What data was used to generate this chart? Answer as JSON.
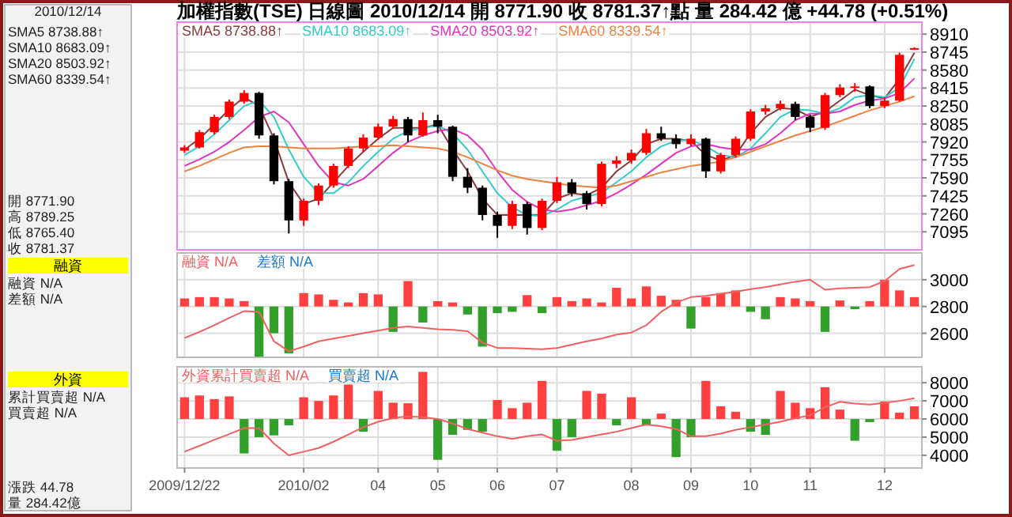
{
  "chart_data": [
    {
      "type": "candlestick",
      "title": "加權指數(TSE)  日線圖  2010/12/14  開 8771.90  收 8781.37↑點  量 284.42 億  +44.78 (+0.51%)",
      "categories": [
        "2009/12/22",
        null,
        null,
        null,
        null,
        null,
        null,
        null,
        "2010/02",
        null,
        null,
        null,
        null,
        "04",
        null,
        null,
        null,
        "05",
        null,
        null,
        null,
        "06",
        null,
        null,
        null,
        "07",
        null,
        null,
        null,
        null,
        "08",
        null,
        null,
        null,
        "09",
        null,
        null,
        null,
        "10",
        null,
        null,
        null,
        "11",
        null,
        null,
        null,
        null,
        "12",
        null,
        null
      ],
      "ohlc": [
        [
          7840,
          7890,
          7820,
          7870
        ],
        [
          7870,
          8030,
          7860,
          8010
        ],
        [
          8010,
          8170,
          7990,
          8150
        ],
        [
          8150,
          8310,
          8130,
          8290
        ],
        [
          8290,
          8395,
          8270,
          8370
        ],
        [
          8370,
          8380,
          7950,
          7980
        ],
        [
          7980,
          8000,
          7530,
          7560
        ],
        [
          7560,
          7580,
          7080,
          7200
        ],
        [
          7200,
          7400,
          7150,
          7380
        ],
        [
          7380,
          7540,
          7340,
          7520
        ],
        [
          7520,
          7720,
          7500,
          7700
        ],
        [
          7700,
          7880,
          7680,
          7860
        ],
        [
          7860,
          7990,
          7830,
          7960
        ],
        [
          7960,
          8090,
          7940,
          8060
        ],
        [
          8060,
          8160,
          8040,
          8130
        ],
        [
          8130,
          8150,
          7920,
          7980
        ],
        [
          7980,
          8190,
          7970,
          8120
        ],
        [
          8120,
          8170,
          8000,
          8060
        ],
        [
          8060,
          8070,
          7560,
          7600
        ],
        [
          7600,
          7680,
          7450,
          7500
        ],
        [
          7500,
          7520,
          7200,
          7250
        ],
        [
          7250,
          7280,
          7040,
          7150
        ],
        [
          7150,
          7380,
          7120,
          7350
        ],
        [
          7350,
          7370,
          7070,
          7130
        ],
        [
          7130,
          7400,
          7110,
          7380
        ],
        [
          7380,
          7600,
          7360,
          7550
        ],
        [
          7550,
          7580,
          7420,
          7450
        ],
        [
          7450,
          7470,
          7300,
          7350
        ],
        [
          7350,
          7740,
          7330,
          7720
        ],
        [
          7720,
          7790,
          7680,
          7750
        ],
        [
          7750,
          7850,
          7720,
          7820
        ],
        [
          7820,
          8040,
          7800,
          8000
        ],
        [
          8000,
          8060,
          7930,
          7950
        ],
        [
          7950,
          7990,
          7860,
          7900
        ],
        [
          7900,
          7990,
          7880,
          7950
        ],
        [
          7950,
          7960,
          7590,
          7650
        ],
        [
          7650,
          7820,
          7630,
          7800
        ],
        [
          7800,
          7970,
          7780,
          7950
        ],
        [
          7950,
          8220,
          7930,
          8200
        ],
        [
          8200,
          8260,
          8170,
          8230
        ],
        [
          8230,
          8300,
          8210,
          8270
        ],
        [
          8270,
          8290,
          8120,
          8150
        ],
        [
          8150,
          8170,
          8010,
          8050
        ],
        [
          8050,
          8370,
          8030,
          8350
        ],
        [
          8350,
          8450,
          8330,
          8420
        ],
        [
          8420,
          8460,
          8380,
          8430
        ],
        [
          8430,
          8440,
          8230,
          8250
        ],
        [
          8250,
          8330,
          8230,
          8300
        ],
        [
          8300,
          8740,
          8290,
          8720
        ],
        [
          8771.9,
          8789.25,
          8765.4,
          8781.37
        ]
      ],
      "colors": [
        "#ff0000",
        "#ff0000",
        "#ff0000",
        "#ff0000",
        "#ff0000",
        "#000000",
        "#000000",
        "#000000",
        "#ff0000",
        "#ff0000",
        "#ff0000",
        "#ff0000",
        "#ff0000",
        "#ff0000",
        "#ff0000",
        "#000000",
        "#ff0000",
        "#000000",
        "#000000",
        "#000000",
        "#000000",
        "#000000",
        "#ff0000",
        "#000000",
        "#ff0000",
        "#ff0000",
        "#000000",
        "#000000",
        "#ff0000",
        "#ff0000",
        "#ff0000",
        "#ff0000",
        "#000000",
        "#000000",
        "#ff0000",
        "#000000",
        "#ff0000",
        "#ff0000",
        "#ff0000",
        "#ff0000",
        "#ff0000",
        "#000000",
        "#000000",
        "#ff0000",
        "#ff0000",
        "#ff0000",
        "#000000",
        "#ff0000",
        "#ff0000",
        "#ff0000"
      ],
      "series": [
        {
          "name": "SMA5 8738.88↑",
          "type": "line",
          "color": "#8b3a3a",
          "values": [
            7850,
            7950,
            8080,
            8220,
            8330,
            8250,
            7950,
            7550,
            7350,
            7400,
            7550,
            7700,
            7830,
            7950,
            8050,
            8050,
            8050,
            8080,
            7850,
            7650,
            7400,
            7250,
            7250,
            7250,
            7250,
            7400,
            7450,
            7430,
            7500,
            7650,
            7750,
            7900,
            7950,
            7950,
            7930,
            7800,
            7750,
            7800,
            8000,
            8150,
            8230,
            8220,
            8150,
            8200,
            8300,
            8400,
            8350,
            8320,
            8500,
            8739
          ]
        },
        {
          "name": "SMA10 8683.09↑",
          "type": "line",
          "color": "#33cccc",
          "values": [
            7800,
            7880,
            7990,
            8120,
            8250,
            8300,
            8150,
            7850,
            7600,
            7450,
            7450,
            7550,
            7700,
            7830,
            7950,
            8020,
            8050,
            8070,
            8000,
            7850,
            7650,
            7450,
            7320,
            7250,
            7240,
            7300,
            7380,
            7420,
            7450,
            7550,
            7650,
            7780,
            7880,
            7930,
            7940,
            7880,
            7800,
            7780,
            7860,
            8000,
            8150,
            8220,
            8210,
            8180,
            8230,
            8330,
            8350,
            8330,
            8420,
            8683
          ]
        },
        {
          "name": "SMA20 8503.92↑",
          "type": "line",
          "color": "#e033c0",
          "values": [
            7700,
            7760,
            7830,
            7920,
            8030,
            8150,
            8200,
            8100,
            7900,
            7700,
            7550,
            7520,
            7580,
            7700,
            7820,
            7920,
            7980,
            8020,
            8040,
            7980,
            7850,
            7650,
            7480,
            7370,
            7300,
            7280,
            7300,
            7340,
            7380,
            7450,
            7530,
            7620,
            7720,
            7820,
            7880,
            7900,
            7870,
            7850,
            7850,
            7900,
            8000,
            8120,
            8180,
            8180,
            8200,
            8260,
            8300,
            8320,
            8370,
            8504
          ]
        },
        {
          "name": "SMA60 8339.54↑",
          "type": "line",
          "color": "#f08040",
          "values": [
            7650,
            7700,
            7760,
            7820,
            7870,
            7880,
            7880,
            7870,
            7860,
            7860,
            7860,
            7870,
            7880,
            7880,
            7890,
            7880,
            7870,
            7860,
            7830,
            7780,
            7720,
            7660,
            7610,
            7580,
            7560,
            7540,
            7520,
            7510,
            7500,
            7520,
            7560,
            7600,
            7640,
            7670,
            7700,
            7720,
            7740,
            7780,
            7830,
            7880,
            7930,
            7980,
            8020,
            8060,
            8110,
            8160,
            8210,
            8250,
            8290,
            8340
          ]
        }
      ],
      "ylim": [
        6930,
        9020
      ],
      "yticks": [
        7095,
        7260,
        7425,
        7590,
        7755,
        7920,
        8085,
        8250,
        8415,
        8580,
        8745,
        8910
      ],
      "grid": true,
      "legend": "top left",
      "tick_labels": "y"
    },
    {
      "type": "bar",
      "categories": [
        "2009/12/22",
        null,
        null,
        null,
        null,
        null,
        null,
        null,
        "2010/02",
        null,
        null,
        null,
        null,
        "04",
        null,
        null,
        null,
        "05",
        null,
        null,
        null,
        "06",
        null,
        null,
        null,
        "07",
        null,
        null,
        null,
        null,
        "08",
        null,
        null,
        null,
        "09",
        null,
        null,
        null,
        "10",
        null,
        null,
        null,
        "11",
        null,
        null,
        null,
        null,
        "12",
        null,
        null
      ],
      "series": [
        {
          "name": "融資 N/A",
          "type": "line",
          "color": "#f06060",
          "values": [
            2565,
            2610,
            2660,
            2715,
            2765,
            2760,
            2540,
            2465,
            2500,
            2540,
            2560,
            2580,
            2600,
            2620,
            2640,
            2650,
            2640,
            2630,
            2625,
            2615,
            2530,
            2490,
            2490,
            2485,
            2480,
            2490,
            2515,
            2540,
            2560,
            2590,
            2605,
            2660,
            2760,
            2830,
            2870,
            2880,
            2895,
            2910,
            2930,
            2945,
            2965,
            2985,
            3000,
            2925,
            2935,
            2940,
            2945,
            2990,
            3080,
            3110
          ]
        },
        {
          "name": "差額 N/A",
          "type": "bar",
          "color": "#1e78c8",
          "colors": [
            "#ff4040",
            "#ff4040",
            "#ff4040",
            "#ff4040",
            "#ff4040",
            "#33a02c",
            "#33a02c",
            "#33a02c",
            "#ff4040",
            "#ff4040",
            "#ff4040",
            "#ff4040",
            "#ff4040",
            "#ff4040",
            "#33a02c",
            "#ff4040",
            "#33a02c",
            "#ff4040",
            "#ff4040",
            "#33a02c",
            "#33a02c",
            "#33a02c",
            "#33a02c",
            "#ff4040",
            "#33a02c",
            "#ff4040",
            "#ff4040",
            "#ff4040",
            "#ff4040",
            "#ff4040",
            "#ff4040",
            "#ff4040",
            "#ff4040",
            "#ff4040",
            "#33a02c",
            "#ff4040",
            "#ff4040",
            "#ff4040",
            "#33a02c",
            "#33a02c",
            "#ff4040",
            "#ff4040",
            "#ff4040",
            "#33a02c",
            "#ff4040",
            "#33a02c",
            "#ff4040",
            "#ff4040",
            "#ff4040",
            "#ff4040"
          ],
          "base": [
            2800,
            2800,
            2800,
            2800,
            2800,
            2800,
            2800,
            2800,
            2800,
            2800,
            2800,
            2800,
            2800,
            2800,
            2800,
            2800,
            2800,
            2800,
            2800,
            2800,
            2800,
            2800,
            2800,
            2800,
            2800,
            2800,
            2800,
            2800,
            2800,
            2800,
            2800,
            2800,
            2800,
            2800,
            2800,
            2800,
            2800,
            2800,
            2800,
            2800,
            2800,
            2800,
            2800,
            2800,
            2800,
            2800,
            2800,
            2800,
            2800,
            2800
          ],
          "values": [
            60,
            70,
            70,
            60,
            40,
            -375,
            -200,
            -350,
            100,
            90,
            50,
            30,
            100,
            90,
            -190,
            190,
            -120,
            40,
            30,
            -60,
            -300,
            -50,
            -40,
            85,
            -50,
            70,
            40,
            60,
            30,
            140,
            60,
            150,
            80,
            50,
            -165,
            70,
            100,
            120,
            -40,
            -95,
            70,
            60,
            40,
            -190,
            45,
            -20,
            40,
            200,
            120,
            70
          ]
        }
      ],
      "ylim": [
        2420,
        3200
      ],
      "yticks": [
        2600,
        2800,
        3000
      ],
      "grid": true,
      "legend": "top left",
      "tick_labels": "y"
    },
    {
      "type": "bar",
      "categories": [
        "2009/12/22",
        null,
        null,
        null,
        null,
        null,
        null,
        null,
        "2010/02",
        null,
        null,
        null,
        null,
        "04",
        null,
        null,
        null,
        "05",
        null,
        null,
        null,
        "06",
        null,
        null,
        null,
        "07",
        null,
        null,
        null,
        null,
        "08",
        null,
        null,
        null,
        "09",
        null,
        null,
        null,
        "10",
        null,
        null,
        null,
        "11",
        null,
        null,
        null,
        null,
        "12",
        null,
        null
      ],
      "series": [
        {
          "name": "外資累計買賣超 N/A",
          "type": "line",
          "color": "#f06060",
          "values": [
            4200,
            4520,
            4850,
            5170,
            5500,
            5500,
            4650,
            4000,
            4200,
            4400,
            4750,
            5150,
            5550,
            5850,
            6050,
            6150,
            6100,
            6000,
            5750,
            5450,
            5250,
            5050,
            4900,
            5050,
            5150,
            4800,
            4850,
            5000,
            5150,
            5300,
            5500,
            5700,
            5600,
            5450,
            5050,
            5050,
            5200,
            5400,
            5550,
            5700,
            5850,
            6050,
            6200,
            6650,
            6950,
            6850,
            6800,
            6900,
            7000,
            7150
          ]
        },
        {
          "name": "買賣超 N/A",
          "type": "bar",
          "color": "#1e78c8",
          "colors": [
            "#ff4040",
            "#ff4040",
            "#ff4040",
            "#ff4040",
            "#33a02c",
            "#33a02c",
            "#33a02c",
            "#33a02c",
            "#ff4040",
            "#ff4040",
            "#ff4040",
            "#ff4040",
            "#33a02c",
            "#ff4040",
            "#ff4040",
            "#ff4040",
            "#ff4040",
            "#33a02c",
            "#33a02c",
            "#33a02c",
            "#33a02c",
            "#ff4040",
            "#ff4040",
            "#ff4040",
            "#ff4040",
            "#33a02c",
            "#33a02c",
            "#ff4040",
            "#ff4040",
            "#33a02c",
            "#ff4040",
            "#33a02c",
            "#ff4040",
            "#33a02c",
            "#33a02c",
            "#ff4040",
            "#ff4040",
            "#ff4040",
            "#33a02c",
            "#33a02c",
            "#ff4040",
            "#ff4040",
            "#ff4040",
            "#ff4040",
            "#ff4040",
            "#33a02c",
            "#33a02c",
            "#ff4040",
            "#ff4040",
            "#ff4040"
          ],
          "base": [
            6000,
            6000,
            6000,
            6000,
            6000,
            6000,
            6000,
            6000,
            6000,
            6000,
            6000,
            6000,
            6000,
            6000,
            6000,
            6000,
            6000,
            6000,
            6000,
            6000,
            6000,
            6000,
            6000,
            6000,
            6000,
            6000,
            6000,
            6000,
            6000,
            6000,
            6000,
            6000,
            6000,
            6000,
            6000,
            6000,
            6000,
            6000,
            6000,
            6000,
            6000,
            6000,
            6000,
            6000,
            6000,
            6000,
            6000,
            6000,
            6000,
            6000
          ],
          "values": [
            1200,
            1300,
            1100,
            1250,
            -1900,
            -1000,
            -900,
            -350,
            1200,
            1000,
            1300,
            1900,
            -700,
            1550,
            900,
            870,
            2600,
            -2250,
            -870,
            -600,
            -700,
            1050,
            600,
            900,
            2100,
            -1750,
            -1000,
            1550,
            1400,
            -350,
            1200,
            -350,
            300,
            -2100,
            -1000,
            2100,
            700,
            400,
            -700,
            -870,
            1550,
            900,
            600,
            1750,
            520,
            -1200,
            -170,
            970,
            350,
            700
          ]
        }
      ],
      "ylim": [
        3300,
        8880
      ],
      "yticks": [
        4000,
        5000,
        6000,
        7000,
        8000
      ],
      "grid": true,
      "legend": "top left"
    },
    {
      "type": "other",
      "annotations": [
        "2010/12/14",
        "SMA5 8738.88↑",
        "SMA10 8683.09↑",
        "SMA20 8503.92↑",
        "SMA60 8339.54↑",
        "開 8771.90",
        "高 8789.25",
        "低 8765.40",
        "收 8781.37",
        "融資",
        "融資 N/A",
        "差額 N/A",
        "外資",
        "累計買賣超 N/A",
        "買賣超 N/A",
        "漲跌 44.78",
        "量 284.42億"
      ]
    }
  ]
}
